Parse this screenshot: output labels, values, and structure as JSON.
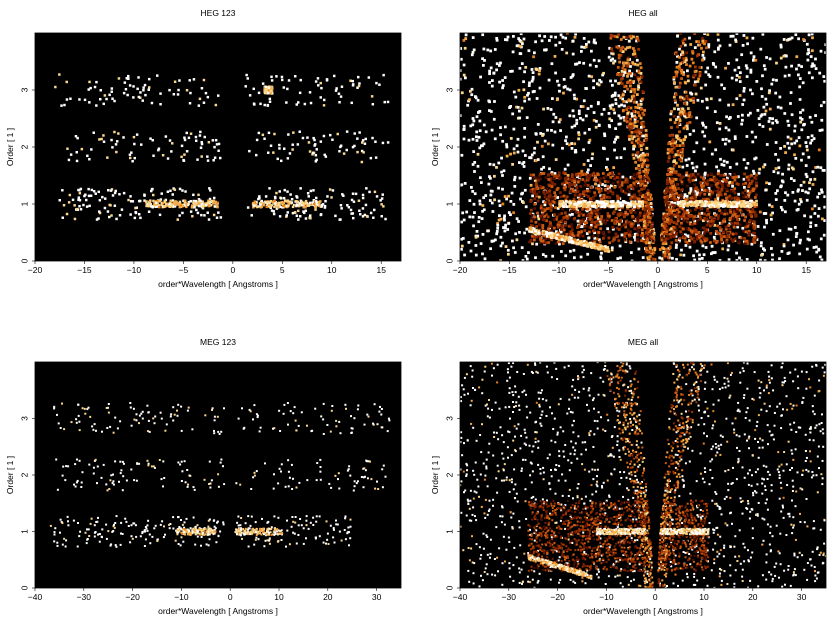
{
  "chart_data": [
    {
      "type": "heatmap",
      "title": "HEG 123",
      "xlabel": "order*Wavelength [ Angstroms ]",
      "ylabel": "Order [ 1 ]",
      "xlim": [
        -20,
        17
      ],
      "ylim": [
        0,
        4
      ],
      "xticks": [
        -20,
        -15,
        -10,
        -5,
        0,
        5,
        10,
        15
      ],
      "yticks": [
        0,
        1,
        2,
        3
      ],
      "colormap": "black-orange-white",
      "bands": [
        {
          "order": 1,
          "x_range": [
            -17.5,
            15.5
          ],
          "bright_core": [
            [
              -9,
              -1.5
            ],
            [
              2,
              9
            ]
          ]
        },
        {
          "order": 2,
          "x_range": [
            -17,
            16
          ],
          "bright_core": []
        },
        {
          "order": 3,
          "x_range": [
            -18,
            16
          ],
          "bright_core": [
            [
              3.2,
              4
            ]
          ]
        }
      ]
    },
    {
      "type": "heatmap",
      "title": "HEG all",
      "xlabel": "order*Wavelength [ Angstroms ]",
      "ylabel": "Order [ 1 ]",
      "xlim": [
        -20,
        17
      ],
      "ylim": [
        0,
        4
      ],
      "xticks": [
        -20,
        -15,
        -10,
        -5,
        0,
        5,
        10,
        15
      ],
      "yticks": [
        0,
        1,
        2,
        3
      ],
      "colormap": "black-orange-white",
      "bands": [
        {
          "order": 1,
          "x_range": [
            -13,
            10
          ],
          "bright_core": [
            [
              -10,
              -1.5
            ],
            [
              2,
              10
            ]
          ]
        }
      ]
    },
    {
      "type": "heatmap",
      "title": "MEG 123",
      "xlabel": "order*Wavelength [ Angstroms ]",
      "ylabel": "Order [ 1 ]",
      "xlim": [
        -40,
        35
      ],
      "ylim": [
        0,
        4
      ],
      "xticks": [
        -40,
        -30,
        -20,
        -10,
        0,
        10,
        20,
        30
      ],
      "yticks": [
        0,
        1,
        2,
        3
      ],
      "colormap": "black-orange-white",
      "bands": [
        {
          "order": 1,
          "x_range": [
            -37,
            25
          ],
          "bright_core": [
            [
              -11,
              -3
            ],
            [
              1,
              11
            ]
          ]
        },
        {
          "order": 2,
          "x_range": [
            -36,
            32
          ],
          "bright_core": []
        },
        {
          "order": 3,
          "x_range": [
            -37,
            33
          ],
          "bright_core": []
        }
      ]
    },
    {
      "type": "heatmap",
      "title": "MEG all",
      "xlabel": "order*Wavelength [ Angstroms ]",
      "ylabel": "Order [ 1 ]",
      "xlim": [
        -40,
        35
      ],
      "ylim": [
        0,
        4
      ],
      "xticks": [
        -40,
        -30,
        -20,
        -10,
        0,
        10,
        20,
        30
      ],
      "yticks": [
        0,
        1,
        2,
        3
      ],
      "colormap": "black-orange-white",
      "bands": [
        {
          "order": 1,
          "x_range": [
            -26,
            11
          ],
          "bright_core": [
            [
              -12,
              -2
            ],
            [
              1,
              11
            ]
          ]
        }
      ]
    }
  ]
}
